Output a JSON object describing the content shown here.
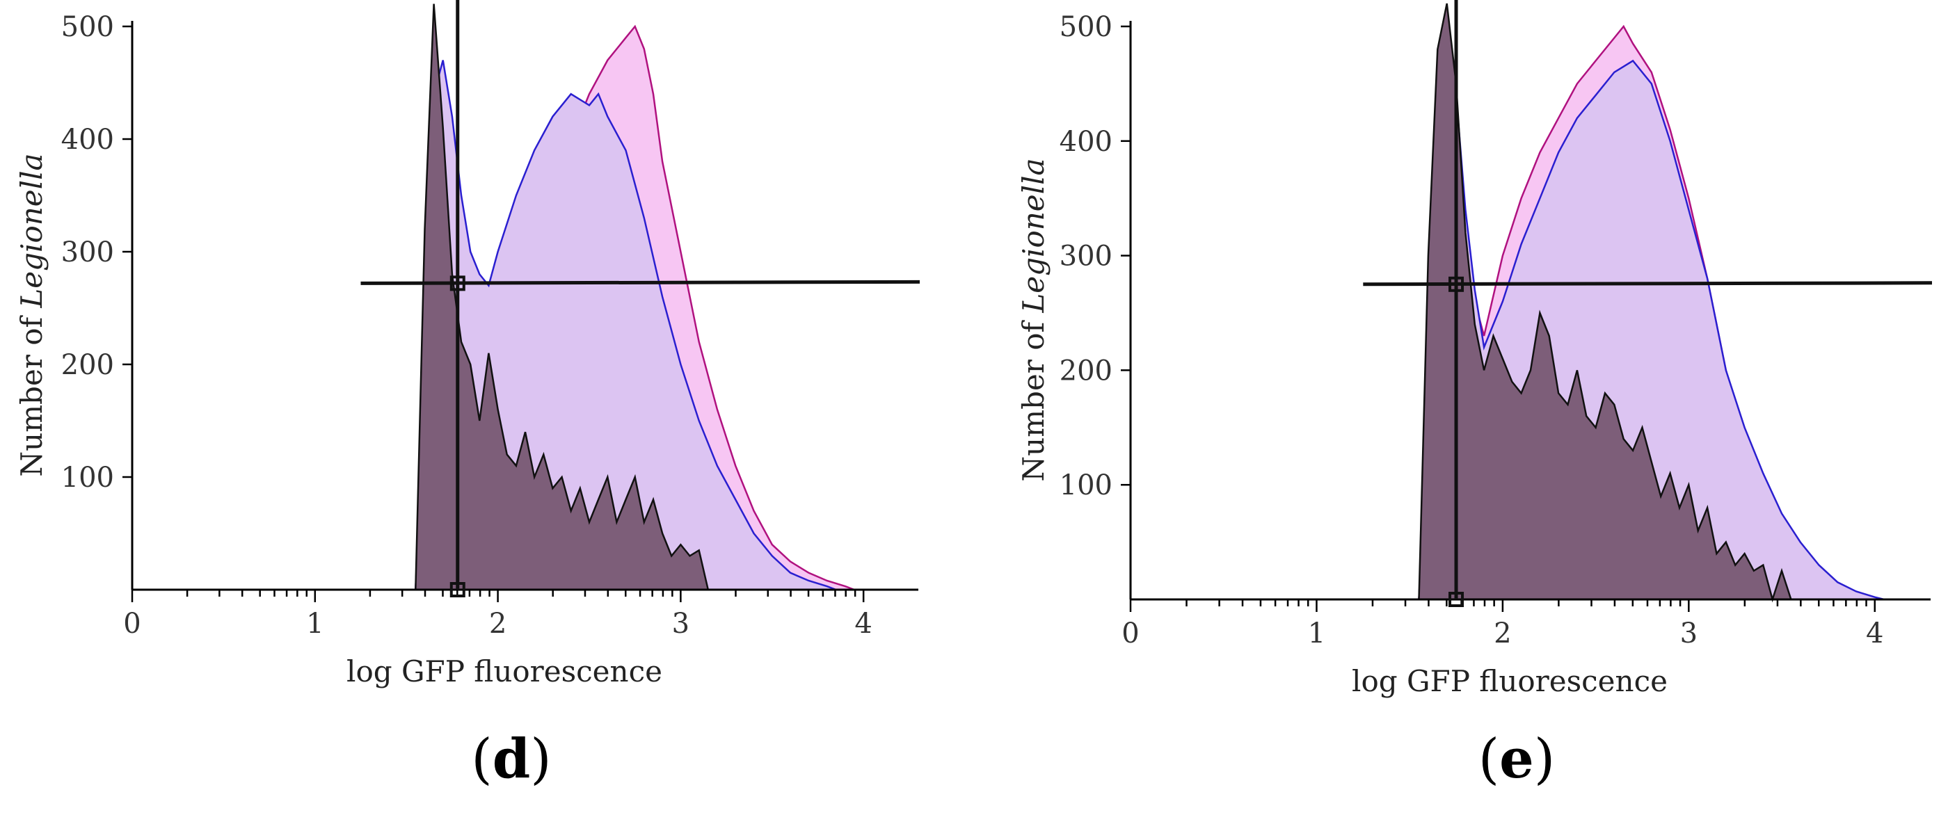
{
  "chart_data": [
    {
      "type": "area",
      "panel": "d",
      "title": "",
      "xlabel": "log GFP fluorescence",
      "ylabel_prefix": "Number of ",
      "ylabel_italic": "Legionella",
      "xlim": [
        0,
        4.3
      ],
      "ylim": [
        0,
        500
      ],
      "xticks": [
        0,
        1,
        2,
        3,
        4
      ],
      "xtick_labels": [
        "0",
        "1",
        "2",
        "3",
        "4"
      ],
      "yticks": [
        100,
        200,
        300,
        400,
        500
      ],
      "ytick_labels": [
        "100",
        "200",
        "300",
        "400",
        "500"
      ],
      "gate": {
        "x": 1.78,
        "y": 272
      },
      "series": [
        {
          "name": "magenta",
          "color": "#b0117f",
          "fill": "#f7c6f3",
          "x": [
            1.55,
            1.6,
            1.65,
            1.7,
            1.75,
            1.8,
            1.85,
            1.9,
            1.95,
            2.0,
            2.1,
            2.2,
            2.3,
            2.4,
            2.5,
            2.6,
            2.7,
            2.75,
            2.8,
            2.85,
            2.9,
            3.0,
            3.1,
            3.2,
            3.3,
            3.4,
            3.5,
            3.6,
            3.7,
            3.8,
            3.9,
            3.95
          ],
          "y": [
            0,
            180,
            420,
            460,
            400,
            320,
            260,
            250,
            230,
            260,
            300,
            330,
            360,
            400,
            440,
            470,
            490,
            500,
            480,
            440,
            380,
            300,
            220,
            160,
            110,
            70,
            40,
            25,
            15,
            8,
            3,
            0
          ]
        },
        {
          "name": "blue",
          "color": "#2a1fd0",
          "fill": "#dcc4f2",
          "x": [
            1.55,
            1.6,
            1.65,
            1.7,
            1.75,
            1.8,
            1.85,
            1.9,
            1.95,
            2.0,
            2.1,
            2.2,
            2.3,
            2.4,
            2.5,
            2.55,
            2.6,
            2.7,
            2.8,
            2.9,
            3.0,
            3.1,
            3.2,
            3.3,
            3.4,
            3.5,
            3.6,
            3.7,
            3.8,
            3.85
          ],
          "y": [
            0,
            190,
            440,
            470,
            420,
            350,
            300,
            280,
            270,
            300,
            350,
            390,
            420,
            440,
            430,
            440,
            420,
            390,
            330,
            260,
            200,
            150,
            110,
            80,
            50,
            30,
            15,
            8,
            3,
            0
          ]
        },
        {
          "name": "black",
          "color": "#111111",
          "fill": "#7d5e79",
          "x": [
            1.55,
            1.6,
            1.65,
            1.7,
            1.75,
            1.8,
            1.85,
            1.9,
            1.95,
            2.0,
            2.05,
            2.1,
            2.15,
            2.2,
            2.25,
            2.3,
            2.35,
            2.4,
            2.45,
            2.5,
            2.55,
            2.6,
            2.65,
            2.7,
            2.75,
            2.8,
            2.85,
            2.9,
            2.95,
            3.0,
            3.05,
            3.1,
            3.15
          ],
          "y": [
            0,
            320,
            520,
            410,
            280,
            220,
            200,
            150,
            210,
            160,
            120,
            110,
            140,
            100,
            120,
            90,
            100,
            70,
            90,
            60,
            80,
            100,
            60,
            80,
            100,
            60,
            80,
            50,
            30,
            40,
            30,
            35,
            0
          ]
        }
      ]
    },
    {
      "type": "area",
      "panel": "e",
      "title": "",
      "xlabel": "log GFP fluorescence",
      "ylabel_prefix": "Number of ",
      "ylabel_italic": "Legionella",
      "xlim": [
        0,
        4.3
      ],
      "ylim": [
        0,
        500
      ],
      "xticks": [
        0,
        1,
        2,
        3,
        4
      ],
      "xtick_labels": [
        "0",
        "1",
        "2",
        "3",
        "4"
      ],
      "yticks": [
        100,
        200,
        300,
        400,
        500
      ],
      "ytick_labels": [
        "100",
        "200",
        "300",
        "400",
        "500"
      ],
      "gate": {
        "x": 1.75,
        "y": 275
      },
      "series": [
        {
          "name": "magenta",
          "color": "#b0117f",
          "fill": "#f7c6f3",
          "x": [
            1.55,
            1.6,
            1.65,
            1.7,
            1.75,
            1.8,
            1.85,
            1.9,
            2.0,
            2.1,
            2.2,
            2.3,
            2.4,
            2.5,
            2.6,
            2.65,
            2.7,
            2.8,
            2.9,
            3.0,
            3.1,
            3.2,
            3.3,
            3.4,
            3.5,
            3.6,
            3.7,
            3.8,
            3.9,
            3.95
          ],
          "y": [
            0,
            160,
            420,
            490,
            420,
            330,
            260,
            230,
            300,
            350,
            390,
            420,
            450,
            470,
            490,
            500,
            485,
            460,
            410,
            350,
            280,
            200,
            140,
            100,
            60,
            35,
            20,
            10,
            3,
            0
          ]
        },
        {
          "name": "blue",
          "color": "#2a1fd0",
          "fill": "#dcc4f2",
          "x": [
            1.55,
            1.6,
            1.65,
            1.7,
            1.75,
            1.8,
            1.85,
            1.9,
            2.0,
            2.1,
            2.2,
            2.3,
            2.4,
            2.5,
            2.6,
            2.7,
            2.8,
            2.9,
            3.0,
            3.1,
            3.2,
            3.3,
            3.4,
            3.5,
            3.6,
            3.7,
            3.8,
            3.9,
            4.0,
            4.05
          ],
          "y": [
            0,
            170,
            440,
            500,
            440,
            340,
            270,
            220,
            260,
            310,
            350,
            390,
            420,
            440,
            460,
            470,
            450,
            400,
            340,
            280,
            200,
            150,
            110,
            75,
            50,
            30,
            15,
            7,
            2,
            0
          ]
        },
        {
          "name": "black",
          "color": "#111111",
          "fill": "#7d5e79",
          "x": [
            1.55,
            1.6,
            1.65,
            1.7,
            1.75,
            1.8,
            1.85,
            1.9,
            1.95,
            2.0,
            2.05,
            2.1,
            2.15,
            2.2,
            2.25,
            2.3,
            2.35,
            2.4,
            2.45,
            2.5,
            2.55,
            2.6,
            2.65,
            2.7,
            2.75,
            2.8,
            2.85,
            2.9,
            2.95,
            3.0,
            3.05,
            3.1,
            3.15,
            3.2,
            3.25,
            3.3,
            3.35,
            3.4,
            3.45,
            3.5,
            3.55
          ],
          "y": [
            0,
            300,
            480,
            520,
            450,
            320,
            240,
            200,
            230,
            210,
            190,
            180,
            200,
            250,
            230,
            180,
            170,
            200,
            160,
            150,
            180,
            170,
            140,
            130,
            150,
            120,
            90,
            110,
            80,
            100,
            60,
            80,
            40,
            50,
            30,
            40,
            25,
            30,
            0,
            25,
            0
          ]
        }
      ]
    }
  ]
}
